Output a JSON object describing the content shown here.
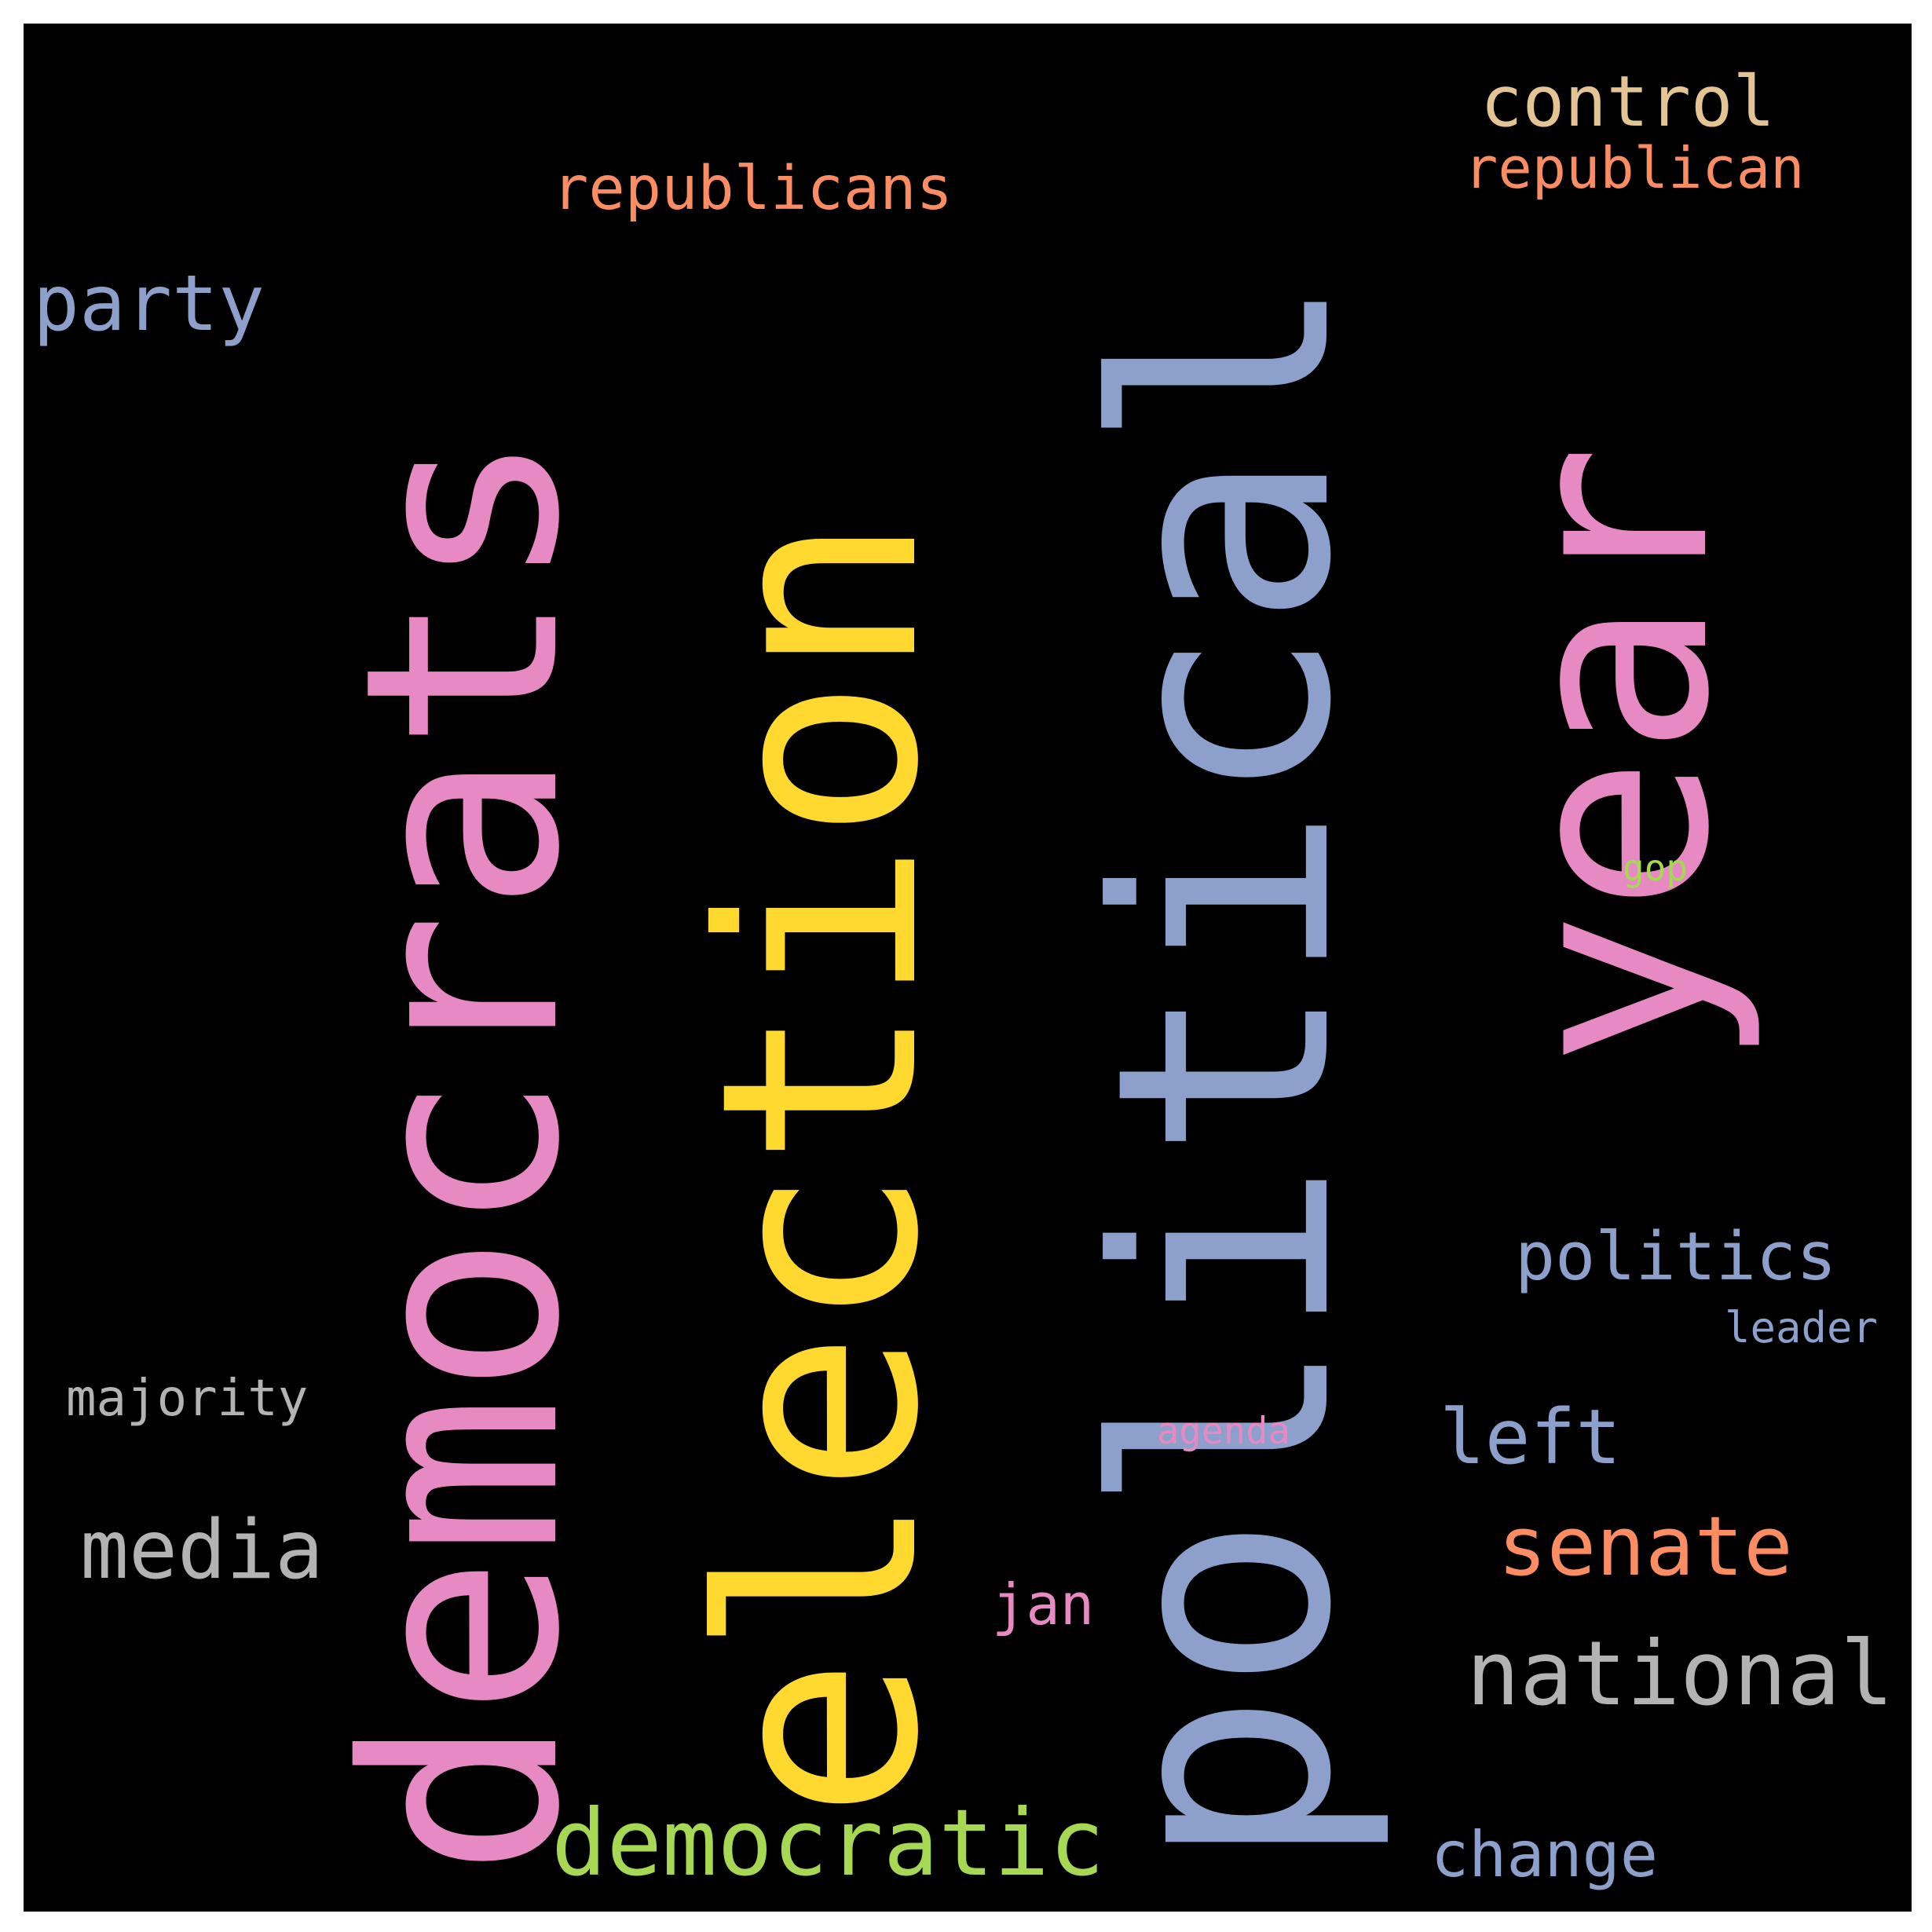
{
  "words": {
    "democrats": {
      "text": "democrats",
      "color": "#e78ac3"
    },
    "election": {
      "text": "election",
      "color": "#ffd92f"
    },
    "political": {
      "text": "political",
      "color": "#8da0cb"
    },
    "year": {
      "text": "year",
      "color": "#e78ac3"
    },
    "control": {
      "text": "control",
      "color": "#e5c494"
    },
    "republican": {
      "text": "republican",
      "color": "#fc8d62"
    },
    "republicans": {
      "text": "republicans",
      "color": "#fc8d62"
    },
    "party": {
      "text": "party",
      "color": "#8da0cb"
    },
    "gop": {
      "text": "gop",
      "color": "#a6d854"
    },
    "politics": {
      "text": "politics",
      "color": "#8da0cb"
    },
    "leader": {
      "text": "leader",
      "color": "#8da0cb"
    },
    "majority": {
      "text": "majority",
      "color": "#b3b3b3"
    },
    "agenda": {
      "text": "agenda",
      "color": "#e78ac3"
    },
    "left": {
      "text": "left",
      "color": "#8da0cb"
    },
    "senate": {
      "text": "senate",
      "color": "#fc8d62"
    },
    "media": {
      "text": "media",
      "color": "#b3b3b3"
    },
    "jan": {
      "text": "jan",
      "color": "#e78ac3"
    },
    "national": {
      "text": "national",
      "color": "#b3b3b3"
    },
    "democratic": {
      "text": "democratic",
      "color": "#a6d854"
    },
    "change": {
      "text": "change",
      "color": "#8da0cb"
    }
  }
}
